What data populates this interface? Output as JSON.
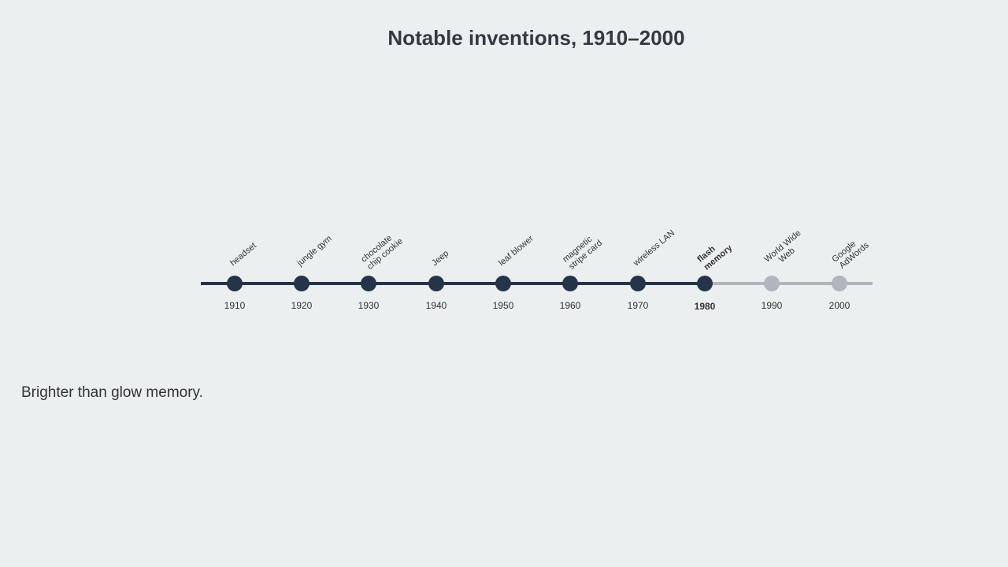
{
  "title": "Notable inventions, 1910–2000",
  "events": [
    {
      "year": "1910",
      "label": [
        "headset"
      ]
    },
    {
      "year": "1920",
      "label": [
        "jungle gym"
      ]
    },
    {
      "year": "1930",
      "label": [
        "chocolate",
        "chip cookie"
      ]
    },
    {
      "year": "1940",
      "label": [
        "Jeep"
      ]
    },
    {
      "year": "1950",
      "label": [
        "leaf blower"
      ]
    },
    {
      "year": "1960",
      "label": [
        "magnetic",
        "stripe card"
      ]
    },
    {
      "year": "1970",
      "label": [
        "wireless LAN"
      ]
    },
    {
      "year": "1980",
      "label": [
        "flash",
        "memory"
      ]
    },
    {
      "year": "1990",
      "label": [
        "World Wide",
        "Web"
      ]
    },
    {
      "year": "2000",
      "label": [
        "Google",
        "AdWords"
      ]
    }
  ],
  "description": "Brighter than glow memory."
}
